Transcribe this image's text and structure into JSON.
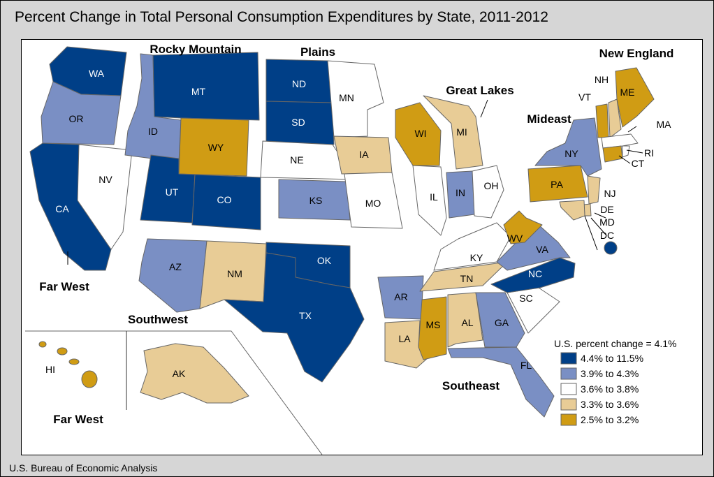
{
  "title": "Percent Change in Total Personal Consumption Expenditures by State, 2011-2012",
  "source": "U.S. Bureau of Economic Analysis",
  "legend": {
    "heading": "U.S. percent change = 4.1%",
    "items": [
      {
        "label": "4.4% to 11.5%",
        "color": "#003f87"
      },
      {
        "label": "3.9% to 4.3%",
        "color": "#7a8fc4"
      },
      {
        "label": "3.6% to 3.8%",
        "color": "#ffffff"
      },
      {
        "label": "3.3% to 3.6%",
        "color": "#e8cc96"
      },
      {
        "label": "2.5% to 3.2%",
        "color": "#d09c14"
      }
    ]
  },
  "regions": {
    "rocky_mountain": "Rocky Mountain",
    "plains": "Plains",
    "great_lakes": "Great Lakes",
    "new_england": "New England",
    "mideast": "Mideast",
    "far_west": "Far West",
    "far_west_inset": "Far West",
    "southwest": "Southwest",
    "southeast": "Southeast"
  },
  "states": {
    "WA": "WA",
    "OR": "OR",
    "CA": "CA",
    "NV": "NV",
    "ID": "ID",
    "MT": "MT",
    "WY": "WY",
    "UT": "UT",
    "CO": "CO",
    "AZ": "AZ",
    "NM": "NM",
    "ND": "ND",
    "SD": "SD",
    "NE": "NE",
    "KS": "KS",
    "OK": "OK",
    "TX": "TX",
    "MN": "MN",
    "IA": "IA",
    "MO": "MO",
    "AR": "AR",
    "LA": "LA",
    "WI": "WI",
    "IL": "IL",
    "MI": "MI",
    "IN": "IN",
    "OH": "OH",
    "KY": "KY",
    "TN": "TN",
    "MS": "MS",
    "AL": "AL",
    "GA": "GA",
    "FL": "FL",
    "SC": "SC",
    "NC": "NC",
    "VA": "VA",
    "WV": "WV",
    "PA": "PA",
    "NY": "NY",
    "NJ": "NJ",
    "DE": "DE",
    "MD": "MD",
    "DC": "DC",
    "VT": "VT",
    "NH": "NH",
    "ME": "ME",
    "MA": "MA",
    "RI": "RI",
    "CT": "CT",
    "AK": "AK",
    "HI": "HI"
  }
}
